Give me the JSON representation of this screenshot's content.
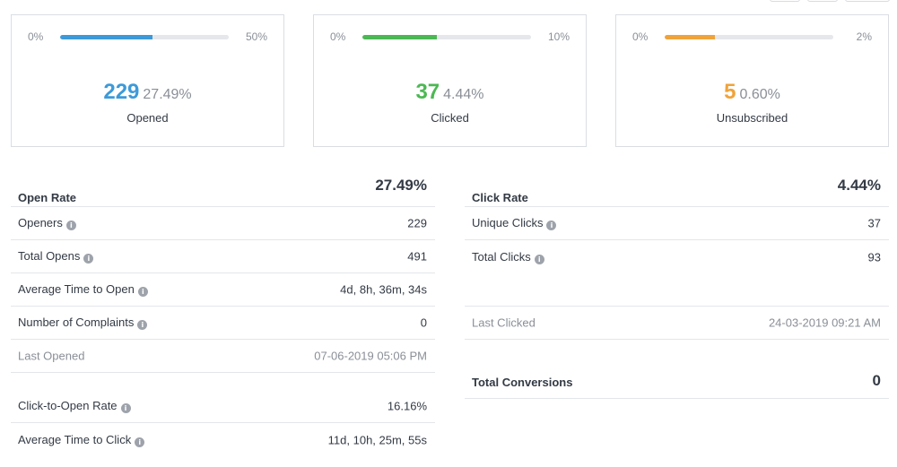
{
  "colors": {
    "opened": "#3d9ad9",
    "clicked": "#4cb853",
    "unsubscribed": "#f0a33a"
  },
  "cards": [
    {
      "id": "opened",
      "min": "0%",
      "max": "50%",
      "fill_fraction": 0.5498,
      "count": "229",
      "percent": "27.49%",
      "label": "Opened"
    },
    {
      "id": "clicked",
      "min": "0%",
      "max": "10%",
      "fill_fraction": 0.444,
      "count": "37",
      "percent": "4.44%",
      "label": "Clicked"
    },
    {
      "id": "unsubscribed",
      "min": "0%",
      "max": "2%",
      "fill_fraction": 0.3,
      "count": "5",
      "percent": "0.60%",
      "label": "Unsubscribed"
    }
  ],
  "left": {
    "header": {
      "label": "Open Rate",
      "value": "27.49%"
    },
    "openers": {
      "label": "Openers",
      "value": "229"
    },
    "total_opens": {
      "label": "Total Opens",
      "value": "491"
    },
    "avg_time_open": {
      "label": "Average Time to Open",
      "value": "4d, 8h, 36m, 34s"
    },
    "complaints": {
      "label": "Number of Complaints",
      "value": "0"
    },
    "last_opened": {
      "label": "Last Opened",
      "value": "07-06-2019 05:06 PM"
    },
    "cto_rate": {
      "label": "Click-to-Open Rate",
      "value": "16.16%"
    },
    "avg_time_click": {
      "label": "Average Time to Click",
      "value": "11d, 10h, 25m, 55s"
    }
  },
  "right": {
    "header": {
      "label": "Click Rate",
      "value": "4.44%"
    },
    "unique_clicks": {
      "label": "Unique Clicks",
      "value": "37"
    },
    "total_clicks": {
      "label": "Total Clicks",
      "value": "93"
    },
    "last_clicked": {
      "label": "Last Clicked",
      "value": "24-03-2019 09:21 AM"
    },
    "conversions": {
      "label": "Total Conversions",
      "value": "0"
    }
  },
  "info_glyph": "i"
}
